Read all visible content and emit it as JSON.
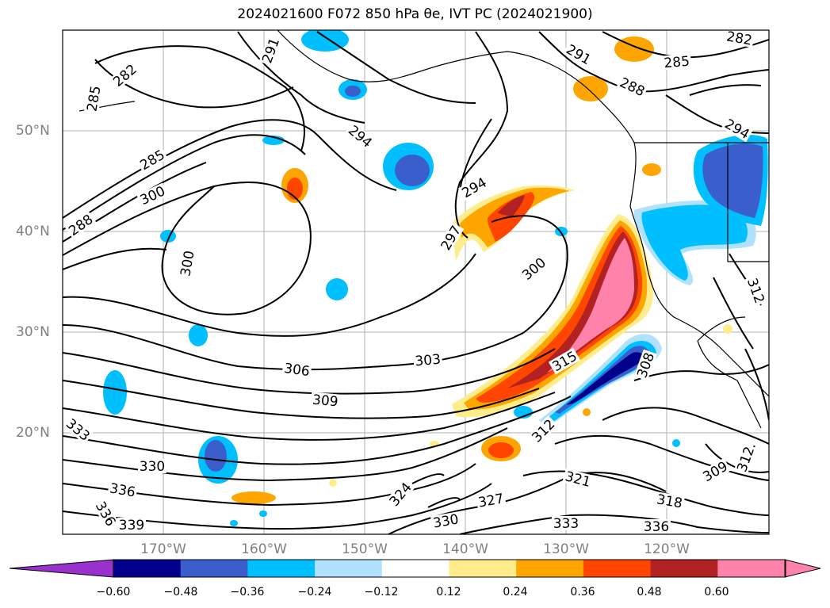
{
  "title": "2024021600 F072 850 hPa θe, IVT PC (2024021900)",
  "lat_labels": [
    "50°N",
    "40°N",
    "30°N",
    "20°N"
  ],
  "lon_labels": [
    "170°W",
    "160°W",
    "150°W",
    "140°W",
    "130°W",
    "120°W"
  ],
  "contour_labels": [
    "282",
    "285",
    "285",
    "288",
    "291",
    "294",
    "294",
    "297",
    "300",
    "300",
    "300",
    "303",
    "306",
    "309",
    "309",
    "312",
    "312",
    "312.",
    "315",
    "318",
    "321",
    "324",
    "327",
    "330",
    "330",
    "333",
    "333",
    "336",
    "336",
    "336",
    "339",
    "282",
    "285",
    "288",
    "291",
    "294",
    "291",
    "308"
  ],
  "colorbar": {
    "ticks": [
      "−0.60",
      "−0.48",
      "−0.36",
      "−0.24",
      "−0.12",
      "0.12",
      "0.24",
      "0.36",
      "0.48",
      "0.60"
    ],
    "colors": [
      "#9932cc",
      "#00008b",
      "#3a5fcd",
      "#00bfff",
      "#b0e2ff",
      "#ffffff",
      "#ffec8b",
      "#ffa500",
      "#ff4500",
      "#b22222",
      "#ff82ab",
      "#ff82ab"
    ]
  }
}
